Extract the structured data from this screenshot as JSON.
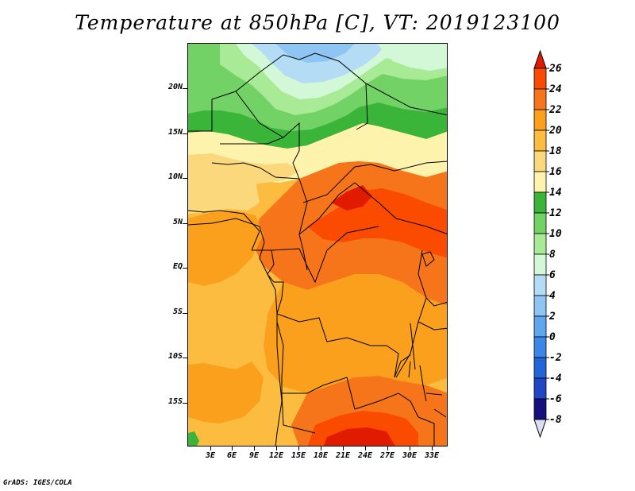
{
  "title": "Temperature at 850hPa [C], VT: 2019123100",
  "footer": "GrADS: IGES/COLA",
  "lat_labels": [
    "20N",
    "15N",
    "10N",
    "5N",
    "EQ",
    "5S",
    "10S",
    "15S"
  ],
  "lon_labels": [
    "3E",
    "6E",
    "9E",
    "12E",
    "15E",
    "18E",
    "21E",
    "24E",
    "27E",
    "30E",
    "33E"
  ],
  "colorbar": {
    "labels": [
      "26",
      "24",
      "22",
      "20",
      "18",
      "16",
      "14",
      "12",
      "10",
      "8",
      "6",
      "4",
      "2",
      "0",
      "-2",
      "-4",
      "-6",
      "-8"
    ],
    "colors": [
      "#e11b00",
      "#fa4b00",
      "#f7751a",
      "#faa01c",
      "#fbbc3f",
      "#fbd87b",
      "#fdf3ac",
      "#3ab53a",
      "#72d265",
      "#a8ea96",
      "#d3f8d8",
      "#b4dcf5",
      "#8ec5f3",
      "#5ea6ed",
      "#3c86e8",
      "#2166d8",
      "#1e46c6",
      "#14117e",
      "#dcdcf4"
    ]
  },
  "colors": {
    "background": "#ffffff",
    "border": "#000000"
  }
}
